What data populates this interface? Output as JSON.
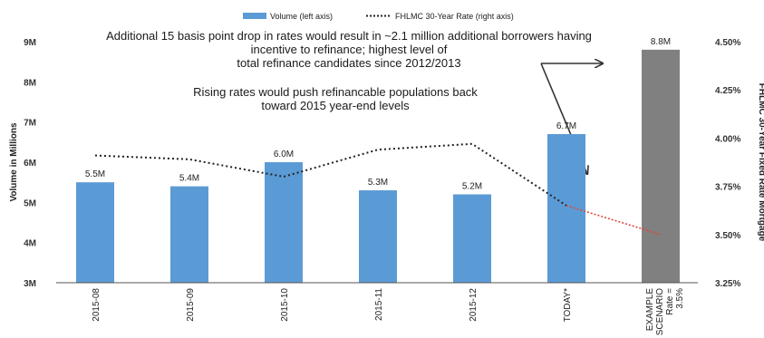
{
  "chart_data": {
    "type": "bar",
    "categories": [
      "2015-08",
      "2015-09",
      "2015-10",
      "2015-11",
      "2015-12",
      "TODAY*"
    ],
    "series": [
      {
        "name": "Volume (left axis)",
        "type": "bar",
        "axis": "left",
        "values": [
          5.5,
          5.4,
          6.0,
          5.3,
          5.2,
          6.7
        ],
        "labels": [
          "5.5M",
          "5.4M",
          "6.0M",
          "5.3M",
          "5.2M",
          "6.7M"
        ],
        "color": "#5b9bd5"
      },
      {
        "name": "FHLMC 30-Year Rate (right axis)",
        "type": "line",
        "axis": "right",
        "style": "dotted",
        "values": [
          3.91,
          3.89,
          3.8,
          3.94,
          3.97,
          3.65
        ],
        "color": "#222222"
      }
    ],
    "scenario": {
      "label_lines": [
        "EXAMPLE",
        "SCENARIO",
        "Rate =",
        "3.5%"
      ],
      "value": 8.8,
      "value_label": "8.8M",
      "rate": 3.5,
      "color": "#808080",
      "rate_line_color": "#e0473a"
    },
    "ylabel": "Volume in Millions",
    "y2label": "FHLMC 30-Year Fixed Rate Mortgage",
    "ylim": [
      3,
      9
    ],
    "y2lim": [
      3.25,
      4.5
    ],
    "yticks": [
      "3M",
      "4M",
      "5M",
      "6M",
      "7M",
      "8M",
      "9M"
    ],
    "y2ticks": [
      "3.25%",
      "3.50%",
      "3.75%",
      "4.00%",
      "4.25%",
      "4.50%"
    ],
    "legend_position": "top-center",
    "grid": false
  },
  "annotations": {
    "top": [
      "Additional 15 basis point drop in rates would result in ~2.1 million additional borrowers having",
      "incentive to refinance; highest level of",
      "total refinance candidates since 2012/2013"
    ],
    "middle": [
      "Rising rates would push refinancable populations back",
      "toward 2015 year-end levels"
    ]
  }
}
